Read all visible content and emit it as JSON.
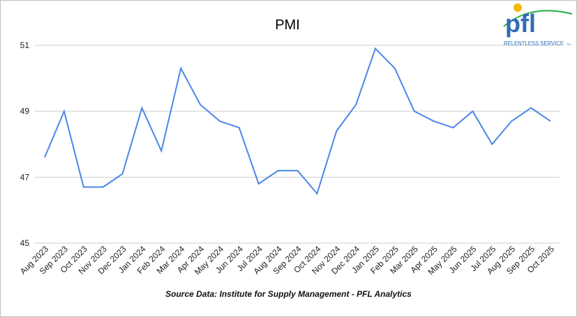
{
  "chart_data": {
    "type": "line",
    "title": "PMI",
    "xlabel": "",
    "ylabel": "",
    "ylim": [
      45,
      51
    ],
    "yticks": [
      "45",
      "47",
      "49",
      "51"
    ],
    "grid": true,
    "categories": [
      "Aug 2023",
      "Sep 2023",
      "Oct 2023",
      "Nov 2023",
      "Dec 2023",
      "Jan 2024",
      "Feb 2024",
      "Mar 2024",
      "Apr 2024",
      "May 2024",
      "Jun 2024",
      "Jul 2024",
      "Aug 2024",
      "Sep 2024",
      "Oct 2024",
      "Nov 2024",
      "Dec 2024",
      "Jan 2025",
      "Feb 2025",
      "Mar 2025",
      "Apr 2025",
      "May 2025",
      "Jun 2025",
      "Jul 2025",
      "Aug 2025",
      "Sep 2025",
      "Oct 2025"
    ],
    "series": [
      {
        "name": "PMI",
        "color": "#4a86e8",
        "values": [
          47.6,
          49.0,
          46.7,
          46.7,
          47.1,
          49.1,
          47.8,
          50.3,
          49.2,
          48.7,
          48.5,
          46.8,
          47.2,
          47.2,
          46.5,
          48.4,
          49.2,
          50.9,
          50.3,
          49.0,
          48.7,
          48.5,
          49.0,
          48.0,
          48.7,
          49.1,
          48.7
        ]
      }
    ]
  },
  "source": "Source Data: Institute for Supply Management - PFL Analytics",
  "logo": {
    "brand": "pfl",
    "tagline": "RELENTLESS SERVICE",
    "tm": "TM"
  }
}
